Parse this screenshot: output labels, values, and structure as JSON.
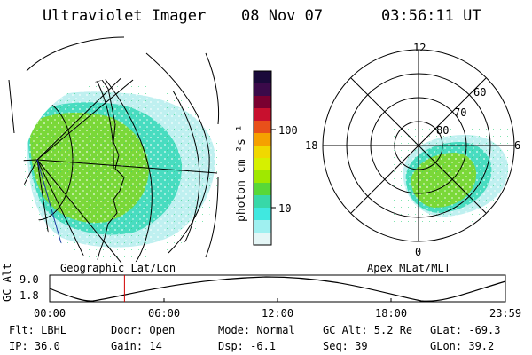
{
  "header": {
    "title": "Ultraviolet Imager",
    "date": "08 Nov 07",
    "time": "03:56:11 UT"
  },
  "colorbar": {
    "label": "photon cm⁻²s⁻¹",
    "ticks": [
      "100",
      "10"
    ],
    "colors": [
      "#1a0a3a",
      "#3b0a4a",
      "#7a0030",
      "#c8102e",
      "#e8501a",
      "#f5a000",
      "#f0d800",
      "#d6f000",
      "#a0e800",
      "#58d838",
      "#38d8a8",
      "#40e8e0",
      "#9ff0f0",
      "#e4f6f6"
    ]
  },
  "geo_map": {
    "label": "Geographic Lat/Lon"
  },
  "polar_map": {
    "label": "Apex MLat/MLT",
    "mlt_labels": {
      "top": "12",
      "left": "18",
      "right": "6",
      "bottom": "0"
    },
    "lat_labels": [
      "60",
      "70",
      "80"
    ]
  },
  "alt_plot": {
    "ylabel": "GC Alt",
    "yticks": [
      "9.0",
      "1.8"
    ],
    "xticks": [
      "00:00",
      "06:00",
      "12:00",
      "18:00",
      "23:59"
    ],
    "marker_hour": 3.94
  },
  "status": {
    "flt": "Flt: LBHL",
    "ip": "IP: 36.0",
    "door": "Door: Open",
    "gain": "Gain: 14",
    "mode": "Mode: Normal",
    "dsp": "Dsp:   -6.1",
    "gcalt": "GC Alt: 5.2 Re",
    "seq": "Seq: 39",
    "glat": "GLat: -69.3",
    "glon": "GLon:  39.2"
  }
}
